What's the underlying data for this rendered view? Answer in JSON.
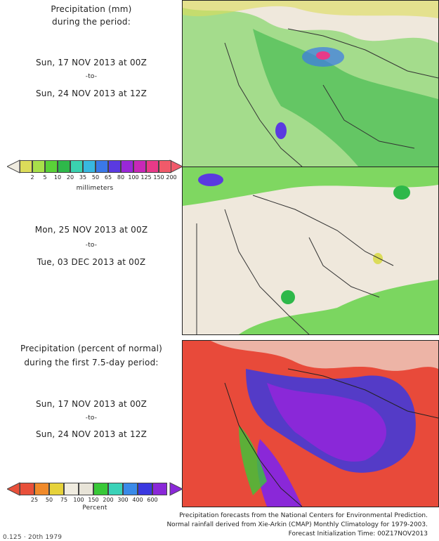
{
  "panel1": {
    "title_line1": "Precipitation (mm)",
    "title_line2": "during the period:",
    "start": "Sun, 17 NOV 2013 at 00Z",
    "to": "-to-",
    "end": "Sun, 24 NOV 2013 at 12Z"
  },
  "panel2": {
    "start": "Mon, 25 NOV 2013 at 00Z",
    "to": "-to-",
    "end": "Tue, 03 DEC 2013 at 00Z"
  },
  "panel3": {
    "title_line1": "Precipitation (percent of normal)",
    "title_line2": "during the first 7.5-day period:",
    "start": "Sun, 17 NOV 2013 at 00Z",
    "to": "-to-",
    "end": "Sun, 24 NOV 2013 at 12Z"
  },
  "legend_mm": {
    "unit": "millimeters",
    "ticks": [
      "2",
      "5",
      "10",
      "20",
      "35",
      "50",
      "65",
      "80",
      "100",
      "125",
      "150",
      "200"
    ],
    "colors": [
      "#dcdc5a",
      "#a8e04a",
      "#5ad238",
      "#2eb84a",
      "#3ad2b0",
      "#38b8e0",
      "#3a78e8",
      "#5a3ae0",
      "#9a28d8",
      "#c828b8",
      "#e83a88",
      "#f05a6a"
    ]
  },
  "legend_pct": {
    "unit": "Percent",
    "ticks": [
      "25",
      "50",
      "75",
      "100",
      "150",
      "200",
      "300",
      "400",
      "600"
    ],
    "colors": [
      "#e8503a",
      "#f08a2a",
      "#e6d23a",
      "#f0ece0",
      "#e8e4d8",
      "#38c838",
      "#3ad2b8",
      "#3a8ae8",
      "#3a38e0",
      "#8a28d8"
    ]
  },
  "footer": {
    "line1": "Precipitation forecasts from the National Centers for Environmental Prediction.",
    "line2": "Normal rainfall derived from Xie-Arkin (CMAP) Monthly Climatology for 1979-2003.",
    "line3": "Forecast Initialization Time: 00Z17NOV2013",
    "corner": "0.125 · 20th 1979"
  }
}
